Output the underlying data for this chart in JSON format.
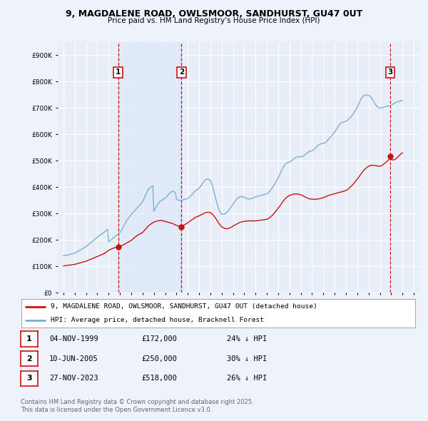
{
  "title": "9, MAGDALENE ROAD, OWLSMOOR, SANDHURST, GU47 0UT",
  "subtitle": "Price paid vs. HM Land Registry's House Price Index (HPI)",
  "ytick_values": [
    0,
    100000,
    200000,
    300000,
    400000,
    500000,
    600000,
    700000,
    800000,
    900000
  ],
  "ylim": [
    0,
    950000
  ],
  "xlim_min": 1994.5,
  "xlim_max": 2026.5,
  "background_color": "#eef2fa",
  "plot_background": "#e8eef8",
  "grid_color": "#ffffff",
  "legend_label_red": "9, MAGDALENE ROAD, OWLSMOOR, SANDHURST, GU47 0UT (detached house)",
  "legend_label_blue": "HPI: Average price, detached house, Bracknell Forest",
  "footer_line1": "Contains HM Land Registry data © Crown copyright and database right 2025.",
  "footer_line2": "This data is licensed under the Open Government Licence v3.0.",
  "transactions": [
    {
      "num": 1,
      "date": "04-NOV-1999",
      "price": 172000,
      "pct": "24%",
      "year": 1999.84
    },
    {
      "num": 2,
      "date": "10-JUN-2005",
      "price": 250000,
      "pct": "30%",
      "year": 2005.44
    },
    {
      "num": 3,
      "date": "27-NOV-2023",
      "price": 518000,
      "pct": "26%",
      "year": 2023.9
    }
  ],
  "hpi_years": [
    1995.0,
    1995.08,
    1995.17,
    1995.25,
    1995.33,
    1995.42,
    1995.5,
    1995.58,
    1995.67,
    1995.75,
    1995.83,
    1995.92,
    1996.0,
    1996.08,
    1996.17,
    1996.25,
    1996.33,
    1996.42,
    1996.5,
    1996.58,
    1996.67,
    1996.75,
    1996.83,
    1996.92,
    1997.0,
    1997.08,
    1997.17,
    1997.25,
    1997.33,
    1997.42,
    1997.5,
    1997.58,
    1997.67,
    1997.75,
    1997.83,
    1997.92,
    1998.0,
    1998.08,
    1998.17,
    1998.25,
    1998.33,
    1998.42,
    1998.5,
    1998.58,
    1998.67,
    1998.75,
    1998.83,
    1998.92,
    1999.0,
    1999.08,
    1999.17,
    1999.25,
    1999.33,
    1999.42,
    1999.5,
    1999.58,
    1999.67,
    1999.75,
    1999.83,
    1999.92,
    2000.0,
    2000.08,
    2000.17,
    2000.25,
    2000.33,
    2000.42,
    2000.5,
    2000.58,
    2000.67,
    2000.75,
    2000.83,
    2000.92,
    2001.0,
    2001.08,
    2001.17,
    2001.25,
    2001.33,
    2001.42,
    2001.5,
    2001.58,
    2001.67,
    2001.75,
    2001.83,
    2001.92,
    2002.0,
    2002.08,
    2002.17,
    2002.25,
    2002.33,
    2002.42,
    2002.5,
    2002.58,
    2002.67,
    2002.75,
    2002.83,
    2002.92,
    2003.0,
    2003.08,
    2003.17,
    2003.25,
    2003.33,
    2003.42,
    2003.5,
    2003.58,
    2003.67,
    2003.75,
    2003.83,
    2003.92,
    2004.0,
    2004.08,
    2004.17,
    2004.25,
    2004.33,
    2004.42,
    2004.5,
    2004.58,
    2004.67,
    2004.75,
    2004.83,
    2004.92,
    2005.0,
    2005.08,
    2005.17,
    2005.25,
    2005.33,
    2005.42,
    2005.5,
    2005.58,
    2005.67,
    2005.75,
    2005.83,
    2005.92,
    2006.0,
    2006.08,
    2006.17,
    2006.25,
    2006.33,
    2006.42,
    2006.5,
    2006.58,
    2006.67,
    2006.75,
    2006.83,
    2006.92,
    2007.0,
    2007.08,
    2007.17,
    2007.25,
    2007.33,
    2007.42,
    2007.5,
    2007.58,
    2007.67,
    2007.75,
    2007.83,
    2007.92,
    2008.0,
    2008.08,
    2008.17,
    2008.25,
    2008.33,
    2008.42,
    2008.5,
    2008.58,
    2008.67,
    2008.75,
    2008.83,
    2008.92,
    2009.0,
    2009.08,
    2009.17,
    2009.25,
    2009.33,
    2009.42,
    2009.5,
    2009.58,
    2009.67,
    2009.75,
    2009.83,
    2009.92,
    2010.0,
    2010.08,
    2010.17,
    2010.25,
    2010.33,
    2010.42,
    2010.5,
    2010.58,
    2010.67,
    2010.75,
    2010.83,
    2010.92,
    2011.0,
    2011.08,
    2011.17,
    2011.25,
    2011.33,
    2011.42,
    2011.5,
    2011.58,
    2011.67,
    2011.75,
    2011.83,
    2011.92,
    2012.0,
    2012.08,
    2012.17,
    2012.25,
    2012.33,
    2012.42,
    2012.5,
    2012.58,
    2012.67,
    2012.75,
    2012.83,
    2012.92,
    2013.0,
    2013.08,
    2013.17,
    2013.25,
    2013.33,
    2013.42,
    2013.5,
    2013.58,
    2013.67,
    2013.75,
    2013.83,
    2013.92,
    2014.0,
    2014.08,
    2014.17,
    2014.25,
    2014.33,
    2014.42,
    2014.5,
    2014.58,
    2014.67,
    2014.75,
    2014.83,
    2014.92,
    2015.0,
    2015.08,
    2015.17,
    2015.25,
    2015.33,
    2015.42,
    2015.5,
    2015.58,
    2015.67,
    2015.75,
    2015.83,
    2015.92,
    2016.0,
    2016.08,
    2016.17,
    2016.25,
    2016.33,
    2016.42,
    2016.5,
    2016.58,
    2016.67,
    2016.75,
    2016.83,
    2016.92,
    2017.0,
    2017.08,
    2017.17,
    2017.25,
    2017.33,
    2017.42,
    2017.5,
    2017.58,
    2017.67,
    2017.75,
    2017.83,
    2017.92,
    2018.0,
    2018.08,
    2018.17,
    2018.25,
    2018.33,
    2018.42,
    2018.5,
    2018.58,
    2018.67,
    2018.75,
    2018.83,
    2018.92,
    2019.0,
    2019.08,
    2019.17,
    2019.25,
    2019.33,
    2019.42,
    2019.5,
    2019.58,
    2019.67,
    2019.75,
    2019.83,
    2019.92,
    2020.0,
    2020.08,
    2020.17,
    2020.25,
    2020.33,
    2020.42,
    2020.5,
    2020.58,
    2020.67,
    2020.75,
    2020.83,
    2020.92,
    2021.0,
    2021.08,
    2021.17,
    2021.25,
    2021.33,
    2021.42,
    2021.5,
    2021.58,
    2021.67,
    2021.75,
    2021.83,
    2021.92,
    2022.0,
    2022.08,
    2022.17,
    2022.25,
    2022.33,
    2022.42,
    2022.5,
    2022.58,
    2022.67,
    2022.75,
    2022.83,
    2022.92,
    2023.0,
    2023.08,
    2023.17,
    2023.25,
    2023.33,
    2023.42,
    2023.5,
    2023.58,
    2023.67,
    2023.75,
    2023.83,
    2023.92,
    2024.0,
    2024.08,
    2024.17,
    2024.25,
    2024.33,
    2024.42,
    2024.5,
    2024.58,
    2024.67,
    2024.75,
    2024.83,
    2024.92,
    2025.0
  ],
  "hpi_values": [
    140000,
    140500,
    141000,
    141500,
    142000,
    143000,
    144000,
    145000,
    146000,
    147000,
    148000,
    149000,
    150000,
    152000,
    154000,
    156000,
    158000,
    160000,
    162000,
    164000,
    166000,
    168000,
    170000,
    172000,
    174000,
    177000,
    180000,
    183000,
    186000,
    189000,
    192000,
    195000,
    198000,
    201000,
    204000,
    207000,
    210000,
    213000,
    216000,
    219000,
    221000,
    223000,
    225000,
    228000,
    231000,
    234000,
    237000,
    240000,
    192000,
    195000,
    198000,
    201000,
    204000,
    207000,
    210000,
    213000,
    216000,
    219000,
    222000,
    225000,
    228000,
    233000,
    238000,
    245000,
    252000,
    259000,
    266000,
    273000,
    278000,
    282000,
    287000,
    292000,
    296000,
    300000,
    304000,
    308000,
    312000,
    316000,
    320000,
    324000,
    328000,
    332000,
    336000,
    340000,
    344000,
    352000,
    360000,
    368000,
    376000,
    384000,
    390000,
    395000,
    398000,
    400000,
    402000,
    405000,
    308000,
    316000,
    322000,
    328000,
    334000,
    340000,
    344000,
    348000,
    350000,
    352000,
    354000,
    356000,
    358000,
    362000,
    366000,
    370000,
    374000,
    378000,
    381000,
    383000,
    384000,
    383000,
    381000,
    378000,
    355000,
    353000,
    351000,
    350000,
    350000,
    350000,
    351000,
    352000,
    353000,
    354000,
    355000,
    356000,
    357000,
    360000,
    363000,
    366000,
    370000,
    374000,
    378000,
    382000,
    386000,
    388000,
    390000,
    393000,
    396000,
    400000,
    405000,
    410000,
    415000,
    420000,
    425000,
    428000,
    430000,
    431000,
    430000,
    428000,
    425000,
    418000,
    408000,
    396000,
    382000,
    366000,
    352000,
    338000,
    326000,
    316000,
    308000,
    302000,
    298000,
    297000,
    297000,
    298000,
    300000,
    303000,
    306000,
    310000,
    315000,
    320000,
    325000,
    330000,
    335000,
    340000,
    345000,
    350000,
    354000,
    358000,
    361000,
    363000,
    364000,
    364000,
    364000,
    363000,
    362000,
    360000,
    358000,
    356000,
    355000,
    355000,
    355000,
    356000,
    357000,
    358000,
    360000,
    362000,
    363000,
    364000,
    365000,
    366000,
    367000,
    368000,
    369000,
    370000,
    371000,
    372000,
    373000,
    374000,
    375000,
    378000,
    381000,
    385000,
    389000,
    394000,
    399000,
    404000,
    410000,
    416000,
    422000,
    428000,
    434000,
    442000,
    450000,
    458000,
    466000,
    473000,
    479000,
    484000,
    488000,
    491000,
    493000,
    494000,
    495000,
    497000,
    499000,
    502000,
    505000,
    508000,
    511000,
    513000,
    514000,
    515000,
    515000,
    515000,
    515000,
    516000,
    517000,
    519000,
    521000,
    524000,
    527000,
    530000,
    533000,
    535000,
    536000,
    537000,
    538000,
    540000,
    543000,
    546000,
    550000,
    554000,
    557000,
    560000,
    562000,
    564000,
    565000,
    566000,
    566000,
    567000,
    569000,
    572000,
    576000,
    580000,
    584000,
    588000,
    592000,
    596000,
    600000,
    604000,
    608000,
    614000,
    620000,
    626000,
    632000,
    637000,
    641000,
    644000,
    646000,
    647000,
    648000,
    649000,
    650000,
    652000,
    655000,
    658000,
    662000,
    666000,
    670000,
    675000,
    680000,
    685000,
    691000,
    697000,
    703000,
    711000,
    719000,
    727000,
    734000,
    740000,
    744000,
    747000,
    749000,
    750000,
    750000,
    749000,
    748000,
    746000,
    743000,
    739000,
    734000,
    728000,
    721000,
    715000,
    710000,
    706000,
    703000,
    701000,
    700000,
    700000,
    701000,
    702000,
    703000,
    704000,
    705000,
    706000,
    707000,
    708000,
    709000,
    710000,
    711000,
    713000,
    715000,
    717000,
    719000,
    721000,
    723000,
    724000,
    725000,
    726000,
    727000,
    728000,
    728000,
    729000,
    730000,
    731000,
    732000,
    733000,
    734000,
    735000,
    736000,
    737000,
    738000,
    739000,
    740000
  ],
  "red_years": [
    1995.0,
    1995.17,
    1995.33,
    1995.5,
    1995.67,
    1995.83,
    1996.0,
    1996.17,
    1996.33,
    1996.5,
    1996.67,
    1996.83,
    1997.0,
    1997.17,
    1997.33,
    1997.5,
    1997.67,
    1997.83,
    1998.0,
    1998.17,
    1998.33,
    1998.5,
    1998.67,
    1998.83,
    1999.0,
    1999.17,
    1999.33,
    1999.5,
    1999.67,
    1999.84,
    2000.0,
    2000.17,
    2000.33,
    2000.5,
    2000.67,
    2000.83,
    2001.0,
    2001.17,
    2001.33,
    2001.5,
    2001.67,
    2001.83,
    2002.0,
    2002.17,
    2002.33,
    2002.5,
    2002.67,
    2002.83,
    2003.0,
    2003.17,
    2003.33,
    2003.5,
    2003.67,
    2003.83,
    2004.0,
    2004.17,
    2004.33,
    2004.5,
    2004.67,
    2004.83,
    2005.0,
    2005.17,
    2005.33,
    2005.44,
    2005.5,
    2005.67,
    2005.83,
    2006.0,
    2006.17,
    2006.33,
    2006.5,
    2006.67,
    2006.83,
    2007.0,
    2007.17,
    2007.33,
    2007.5,
    2007.67,
    2007.83,
    2008.0,
    2008.17,
    2008.33,
    2008.5,
    2008.67,
    2008.83,
    2009.0,
    2009.17,
    2009.33,
    2009.5,
    2009.67,
    2009.83,
    2010.0,
    2010.17,
    2010.33,
    2010.5,
    2010.67,
    2010.83,
    2011.0,
    2011.17,
    2011.33,
    2011.5,
    2011.67,
    2011.83,
    2012.0,
    2012.17,
    2012.33,
    2012.5,
    2012.67,
    2012.83,
    2013.0,
    2013.17,
    2013.33,
    2013.5,
    2013.67,
    2013.83,
    2014.0,
    2014.17,
    2014.33,
    2014.5,
    2014.67,
    2014.83,
    2015.0,
    2015.17,
    2015.33,
    2015.5,
    2015.67,
    2015.83,
    2016.0,
    2016.17,
    2016.33,
    2016.5,
    2016.67,
    2016.83,
    2017.0,
    2017.17,
    2017.33,
    2017.5,
    2017.67,
    2017.83,
    2018.0,
    2018.17,
    2018.33,
    2018.5,
    2018.67,
    2018.83,
    2019.0,
    2019.17,
    2019.33,
    2019.5,
    2019.67,
    2019.83,
    2020.0,
    2020.17,
    2020.33,
    2020.5,
    2020.67,
    2020.83,
    2021.0,
    2021.17,
    2021.33,
    2021.5,
    2021.67,
    2021.83,
    2022.0,
    2022.17,
    2022.33,
    2022.5,
    2022.67,
    2022.83,
    2023.0,
    2023.17,
    2023.33,
    2023.5,
    2023.67,
    2023.84,
    2023.9,
    2024.0,
    2024.17,
    2024.33,
    2024.5,
    2024.67,
    2024.83,
    2025.0
  ],
  "red_values": [
    101000,
    102000,
    103000,
    104000,
    105000,
    106000,
    107000,
    109000,
    111000,
    113000,
    115000,
    117000,
    119000,
    122000,
    125000,
    128000,
    131000,
    134000,
    137000,
    140000,
    143000,
    146000,
    150000,
    155000,
    160000,
    164000,
    167000,
    170000,
    171000,
    172000,
    174000,
    178000,
    182000,
    186000,
    190000,
    194000,
    198000,
    204000,
    210000,
    216000,
    220000,
    224000,
    228000,
    236000,
    244000,
    252000,
    258000,
    263000,
    267000,
    270000,
    272000,
    273000,
    274000,
    272000,
    270000,
    268000,
    266000,
    264000,
    262000,
    258000,
    255000,
    252000,
    251000,
    250000,
    252000,
    256000,
    260000,
    265000,
    270000,
    275000,
    280000,
    285000,
    288000,
    291000,
    295000,
    298000,
    302000,
    304000,
    305000,
    303000,
    298000,
    290000,
    280000,
    268000,
    258000,
    250000,
    245000,
    243000,
    242000,
    244000,
    248000,
    252000,
    256000,
    260000,
    264000,
    267000,
    269000,
    270000,
    271000,
    272000,
    272000,
    272000,
    272000,
    272000,
    273000,
    274000,
    275000,
    276000,
    277000,
    278000,
    282000,
    287000,
    294000,
    302000,
    311000,
    320000,
    330000,
    340000,
    350000,
    358000,
    364000,
    368000,
    371000,
    373000,
    374000,
    374000,
    373000,
    371000,
    368000,
    364000,
    360000,
    357000,
    355000,
    354000,
    354000,
    354000,
    355000,
    356000,
    358000,
    360000,
    363000,
    366000,
    369000,
    371000,
    373000,
    375000,
    377000,
    379000,
    381000,
    383000,
    385000,
    387000,
    392000,
    398000,
    405000,
    413000,
    421000,
    430000,
    440000,
    450000,
    460000,
    468000,
    474000,
    479000,
    482000,
    483000,
    482000,
    481000,
    480000,
    479000,
    482000,
    487000,
    493000,
    499000,
    507000,
    518000,
    505000,
    503000,
    505000,
    510000,
    518000,
    525000,
    530000
  ]
}
